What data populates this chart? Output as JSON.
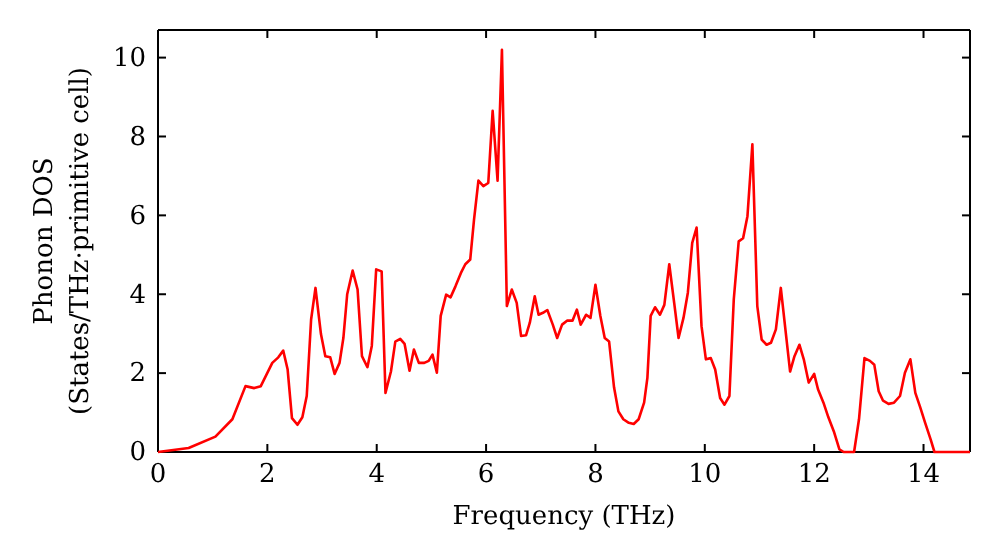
{
  "chart_data": {
    "type": "line",
    "xlabel": "Frequency (THz)",
    "ylabel": "Phonon DOS\n(States/THz·primitive cell)",
    "xlim": [
      0,
      14.85
    ],
    "ylim": [
      0,
      10.7
    ],
    "xticks": [
      0,
      2,
      4,
      6,
      8,
      10,
      12,
      14
    ],
    "yticks": [
      0,
      2,
      4,
      6,
      8,
      10
    ],
    "grid": false,
    "marker": "none",
    "line_style": "solid",
    "series": [
      {
        "color": "#ff0000",
        "x": [
          0,
          0.56,
          1.05,
          1.36,
          1.6,
          1.76,
          1.88,
          2.09,
          2.2,
          2.29,
          2.37,
          2.45,
          2.55,
          2.64,
          2.72,
          2.8,
          2.88,
          2.98,
          3.06,
          3.15,
          3.23,
          3.32,
          3.39,
          3.46,
          3.56,
          3.65,
          3.73,
          3.83,
          3.91,
          3.99,
          4.09,
          4.16,
          4.26,
          4.34,
          4.43,
          4.51,
          4.6,
          4.68,
          4.77,
          4.87,
          4.95,
          5.02,
          5.1,
          5.17,
          5.27,
          5.35,
          5.44,
          5.54,
          5.62,
          5.71,
          5.78,
          5.86,
          5.95,
          6.04,
          6.12,
          6.21,
          6.29,
          6.38,
          6.47,
          6.56,
          6.64,
          6.73,
          6.8,
          6.89,
          6.96,
          7.04,
          7.12,
          7.22,
          7.3,
          7.39,
          7.48,
          7.51,
          7.58,
          7.66,
          7.73,
          7.83,
          7.91,
          8.0,
          8.09,
          8.17,
          8.25,
          8.34,
          8.42,
          8.51,
          8.61,
          8.7,
          8.79,
          8.89,
          8.95,
          9.01,
          9.09,
          9.18,
          9.26,
          9.35,
          9.44,
          9.52,
          9.61,
          9.69,
          9.77,
          9.85,
          9.94,
          10.02,
          10.11,
          10.19,
          10.28,
          10.36,
          10.45,
          10.53,
          10.62,
          10.7,
          10.78,
          10.87,
          10.96,
          11.04,
          11.13,
          11.21,
          11.3,
          11.39,
          11.47,
          11.56,
          11.64,
          11.73,
          11.81,
          11.9,
          12.0,
          12.07,
          12.17,
          12.26,
          12.36,
          12.46,
          12.54,
          12.73,
          12.82,
          12.92,
          13.02,
          13.1,
          13.18,
          13.26,
          13.36,
          13.46,
          13.57,
          13.66,
          13.76,
          13.85,
          13.94,
          14.03,
          14.13,
          14.2,
          14.85
        ],
        "values": [
          0,
          0.1,
          0.39,
          0.83,
          1.67,
          1.62,
          1.67,
          2.26,
          2.4,
          2.57,
          2.1,
          0.86,
          0.69,
          0.88,
          1.42,
          3.36,
          4.16,
          2.99,
          2.43,
          2.4,
          1.98,
          2.26,
          2.89,
          4.0,
          4.6,
          4.12,
          2.43,
          2.15,
          2.69,
          4.63,
          4.58,
          1.5,
          2.04,
          2.8,
          2.87,
          2.74,
          2.06,
          2.6,
          2.26,
          2.26,
          2.31,
          2.47,
          2.01,
          3.45,
          3.99,
          3.92,
          4.2,
          4.54,
          4.76,
          4.88,
          5.9,
          6.88,
          6.74,
          6.82,
          8.65,
          6.88,
          10.2,
          3.7,
          4.12,
          3.78,
          2.94,
          2.96,
          3.28,
          3.95,
          3.48,
          3.53,
          3.6,
          3.23,
          2.89,
          3.23,
          3.33,
          3.33,
          3.33,
          3.61,
          3.23,
          3.48,
          3.4,
          4.24,
          3.45,
          2.89,
          2.8,
          1.64,
          1.03,
          0.83,
          0.74,
          0.71,
          0.83,
          1.25,
          1.88,
          3.45,
          3.67,
          3.48,
          3.73,
          4.76,
          3.78,
          2.89,
          3.4,
          4.04,
          5.3,
          5.69,
          3.19,
          2.35,
          2.38,
          2.09,
          1.37,
          1.2,
          1.42,
          3.87,
          5.34,
          5.42,
          5.98,
          7.8,
          3.7,
          2.85,
          2.72,
          2.77,
          3.11,
          4.16,
          3.16,
          2.04,
          2.43,
          2.72,
          2.35,
          1.76,
          1.98,
          1.59,
          1.25,
          0.88,
          0.52,
          0.07,
          0,
          0,
          0.83,
          2.38,
          2.31,
          2.21,
          1.54,
          1.3,
          1.22,
          1.25,
          1.42,
          2.01,
          2.35,
          1.5,
          1.13,
          0.74,
          0.32,
          0,
          0
        ]
      }
    ]
  }
}
